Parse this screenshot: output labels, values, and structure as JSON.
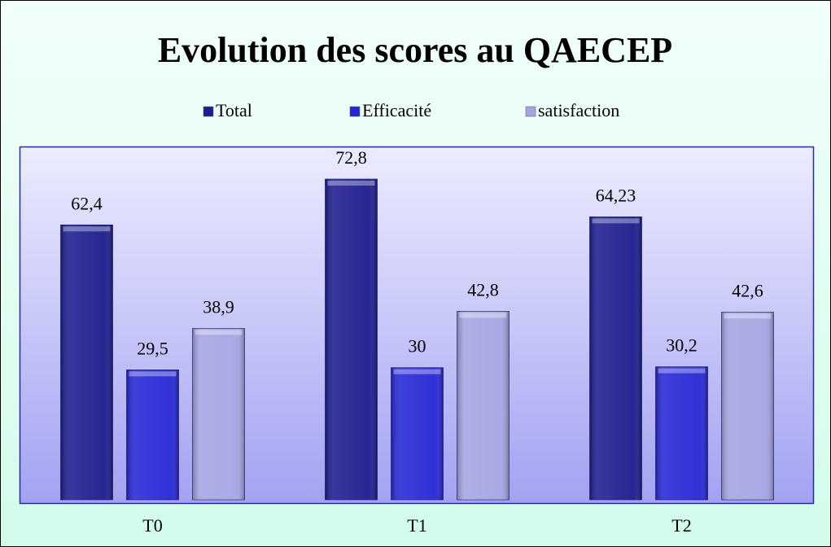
{
  "chart_data": {
    "type": "bar",
    "title": "Evolution des scores au QAECEP",
    "categories": [
      "T0",
      "T1",
      "T2"
    ],
    "series": [
      {
        "name": "Total",
        "color": "#1c1c8f",
        "values": [
          62.4,
          72.8,
          64.23
        ],
        "value_labels": [
          "62,4",
          "72,8",
          "64,23"
        ]
      },
      {
        "name": "Efficacité",
        "color": "#2626d6",
        "values": [
          29.5,
          30,
          30.2
        ],
        "value_labels": [
          "29,5",
          "30",
          "30,2"
        ]
      },
      {
        "name": "satisfaction",
        "color": "#a4a4e2",
        "values": [
          38.9,
          42.8,
          42.6
        ],
        "value_labels": [
          "38,9",
          "42,8",
          "42,6"
        ]
      }
    ],
    "ylim": [
      0,
      80
    ],
    "legend": "top"
  }
}
